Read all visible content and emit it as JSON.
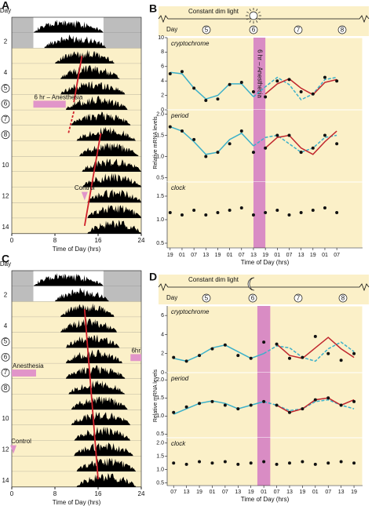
{
  "chart_data": [
    {
      "type": "actogram",
      "label": "A",
      "xlim": [
        0,
        24
      ],
      "xticks": [
        0,
        8,
        16,
        24
      ],
      "xlabel": "Time of Day (hrs)",
      "day_labels": [
        "Day",
        "2",
        null,
        "4",
        "5",
        "6",
        "7",
        "8",
        null,
        "10",
        null,
        "12",
        null,
        "14"
      ],
      "circled": [
        "5",
        "6",
        "7",
        "8"
      ],
      "light_rows": 2,
      "lights": [
        4,
        17
      ],
      "activity": [
        [
          4,
          17
        ],
        [
          6,
          17.5
        ],
        [
          8,
          19
        ],
        [
          9,
          20
        ],
        [
          9,
          21
        ],
        [
          10,
          21.5
        ],
        [
          11,
          22
        ],
        [
          12,
          23
        ],
        [
          12.5,
          23.5
        ],
        [
          13,
          24
        ],
        [
          13,
          24
        ],
        [
          14,
          24
        ],
        [
          14,
          24
        ],
        [
          14,
          24
        ]
      ],
      "line_color": "#d0202a",
      "red_lines": [
        {
          "points": [
            [
              13,
              3
            ],
            [
              11.5,
              6
            ]
          ],
          "dashed": false
        },
        {
          "points": [
            [
              11.5,
              6.6
            ],
            [
              10.5,
              8
            ]
          ],
          "dashed": true
        },
        {
          "points": [
            [
              16.5,
              8
            ],
            [
              13.5,
              14
            ]
          ],
          "dashed": false
        }
      ],
      "annotation_color": "#e195c9",
      "annotations": [
        {
          "text": "6 hr – Anesthesia",
          "row": 6,
          "start": 4,
          "end": 10
        },
        {
          "text": "Control",
          "row": 12,
          "at": 13.5
        }
      ]
    },
    {
      "type": "line",
      "label": "B",
      "icon": "sun",
      "header": {
        "text": "Constant dim light",
        "day": "Day",
        "days": [
          "5",
          "6",
          "7",
          "8"
        ]
      },
      "xlim": [
        -1.5,
        97
      ],
      "x": [
        0,
        6,
        12,
        18,
        24,
        30,
        36,
        42,
        48,
        54,
        60,
        66,
        72,
        78,
        84
      ],
      "xticks": [
        {
          "value": 0,
          "label": "19"
        },
        {
          "value": 6,
          "label": "01"
        },
        {
          "value": 12,
          "label": "07"
        },
        {
          "value": 18,
          "label": "13"
        },
        {
          "value": 24,
          "label": "19"
        },
        {
          "value": 30,
          "label": "01"
        },
        {
          "value": 36,
          "label": "07"
        },
        {
          "value": 42,
          "label": "13"
        },
        {
          "value": 48,
          "label": "19"
        },
        {
          "value": 54,
          "label": "01"
        },
        {
          "value": 60,
          "label": "07"
        },
        {
          "value": 66,
          "label": "13"
        },
        {
          "value": 72,
          "label": "19"
        },
        {
          "value": 78,
          "label": "01"
        },
        {
          "value": 84,
          "label": "07"
        }
      ],
      "xlabel": "Time of Day (hrs)",
      "ylabel": "Relative mRNA levels",
      "shade": [
        42,
        48
      ],
      "shade_color": "#d98cc4",
      "shade_label": "6 hr – Anesthesia",
      "subplots": [
        {
          "title": "cryptochrome",
          "ylim": [
            0,
            10
          ],
          "yticks": [
            0,
            2,
            4,
            6,
            8,
            10
          ],
          "series": [
            {
              "style": "line",
              "color": "#3bb0c9",
              "values": [
                5.2,
                5,
                3,
                1.5,
                2,
                3.6,
                3.6,
                1.8,
                null,
                null,
                null,
                null,
                null,
                null,
                null
              ]
            },
            {
              "style": "dashed",
              "color": "#3bb0c9",
              "values": [
                null,
                null,
                null,
                null,
                null,
                null,
                null,
                1.8,
                3.2,
                4.5,
                3.5,
                1.4,
                2.2,
                4.2,
                4.5
              ]
            },
            {
              "style": "line",
              "color": "#c0262d",
              "values": [
                null,
                null,
                null,
                null,
                null,
                null,
                null,
                null,
                2.2,
                3.6,
                4.3,
                3,
                2.1,
                3.8,
                4.2
              ]
            },
            {
              "style": "dots",
              "color": "#111111",
              "values": [
                5,
                5.3,
                3,
                1.3,
                1.5,
                3.5,
                3.8,
                2.5,
                1.8,
                4,
                4.2,
                2.5,
                2.2,
                4.5,
                4
              ]
            }
          ]
        },
        {
          "title": "period",
          "ylim": [
            0.4,
            2.1
          ],
          "yticks": [
            0.5,
            {
              "value": 1,
              "label": "1.0"
            },
            1.5,
            {
              "value": 2,
              "label": "2.0"
            }
          ],
          "series": [
            {
              "style": "line",
              "color": "#3bb0c9",
              "values": [
                1.7,
                1.6,
                1.35,
                1.05,
                1.1,
                1.4,
                1.55,
                1.25,
                null,
                null,
                null,
                null,
                null,
                null,
                null
              ]
            },
            {
              "style": "dashed",
              "color": "#3bb0c9",
              "values": [
                null,
                null,
                null,
                null,
                null,
                null,
                null,
                1.25,
                1.45,
                1.5,
                1.3,
                1.1,
                1.2,
                1.45,
                1.5
              ]
            },
            {
              "style": "line",
              "color": "#c0262d",
              "values": [
                null,
                null,
                null,
                null,
                null,
                null,
                null,
                null,
                1.2,
                1.45,
                1.5,
                1.2,
                1.05,
                1.35,
                1.6
              ]
            },
            {
              "style": "dots",
              "color": "#111111",
              "values": [
                1.7,
                1.6,
                1.4,
                1,
                1.1,
                1.3,
                1.6,
                1.1,
                1.2,
                1.5,
                1.5,
                1.1,
                1.2,
                1.5,
                1.3
              ]
            }
          ]
        },
        {
          "title": "clock",
          "ylim": [
            0.4,
            1.8
          ],
          "yticks": [
            0.5,
            {
              "value": 1,
              "label": "1.0"
            },
            1.5
          ],
          "series": [
            {
              "style": "dots",
              "color": "#111111",
              "values": [
                1.15,
                1.1,
                1.2,
                1.1,
                1.15,
                1.2,
                1.25,
                1.1,
                1.15,
                1.2,
                1.1,
                1.15,
                1.2,
                1.25,
                1.15
              ]
            }
          ]
        }
      ]
    },
    {
      "type": "actogram",
      "label": "C",
      "xlim": [
        0,
        24
      ],
      "xticks": [
        0,
        8,
        16,
        24
      ],
      "xlabel": "Time of Day (hrs)",
      "day_labels": [
        "Day",
        "2",
        null,
        "4",
        "5",
        "6",
        "7",
        "8",
        null,
        "10",
        null,
        "12",
        null,
        "14"
      ],
      "circled": [
        "5",
        "6",
        "7",
        "8"
      ],
      "light_rows": 2,
      "lights": [
        4,
        17
      ],
      "activity": [
        [
          4,
          17
        ],
        [
          8,
          18
        ],
        [
          9,
          19
        ],
        [
          9,
          19.5
        ],
        [
          10,
          20
        ],
        [
          10,
          20.5
        ],
        [
          10,
          21
        ],
        [
          10.5,
          21
        ],
        [
          11,
          21.5
        ],
        [
          11,
          22
        ],
        [
          11.5,
          22
        ],
        [
          11.5,
          22.5
        ],
        [
          12,
          23
        ],
        [
          12,
          23
        ]
      ],
      "line_color": "#d0202a",
      "red_lines": [
        {
          "points": [
            [
              13.5,
              3
            ],
            [
              16,
              14
            ]
          ],
          "dashed": false
        }
      ],
      "annotation_color": "#e195c9",
      "annotations": [
        {
          "text": "6hr",
          "row": 6,
          "start": 22,
          "end": 24
        },
        {
          "text": "Anesthesia",
          "row": 7,
          "start": 0,
          "end": 4.5
        },
        {
          "text": "Control",
          "row": 12,
          "at": 0.3
        }
      ]
    },
    {
      "type": "line",
      "label": "D",
      "icon": "moon",
      "header": {
        "text": "Constant dim light",
        "day": "Day",
        "days": [
          "5",
          "6",
          "7",
          "8"
        ]
      },
      "xlim": [
        -3,
        88
      ],
      "x": [
        0,
        6,
        12,
        18,
        24,
        30,
        36,
        42,
        48,
        54,
        60,
        66,
        72,
        78,
        84
      ],
      "xticks": [
        {
          "value": 0,
          "label": "07"
        },
        {
          "value": 6,
          "label": "13"
        },
        {
          "value": 12,
          "label": "19"
        },
        {
          "value": 18,
          "label": "01"
        },
        {
          "value": 24,
          "label": "07"
        },
        {
          "value": 30,
          "label": "13"
        },
        {
          "value": 36,
          "label": "19"
        },
        {
          "value": 42,
          "label": "01"
        },
        {
          "value": 48,
          "label": "07"
        },
        {
          "value": 54,
          "label": "13"
        },
        {
          "value": 60,
          "label": "19"
        },
        {
          "value": 66,
          "label": "01"
        },
        {
          "value": 72,
          "label": "07"
        },
        {
          "value": 78,
          "label": "13"
        },
        {
          "value": 84,
          "label": "19"
        }
      ],
      "xlabel": "Time of Day (hrs)",
      "ylabel": "Relative mRNA levels",
      "shade": [
        39,
        45
      ],
      "shade_color": "#d98cc4",
      "subplots": [
        {
          "title": "cryptochrome",
          "ylim": [
            0,
            7
          ],
          "yticks": [
            0,
            2,
            4,
            6
          ],
          "series": [
            {
              "style": "line",
              "color": "#3bb0c9",
              "values": [
                1.5,
                1.2,
                1.8,
                2.6,
                2.9,
                2.2,
                1.5,
                2,
                null,
                null,
                null,
                null,
                null,
                null,
                null
              ]
            },
            {
              "style": "dashed",
              "color": "#3bb0c9",
              "values": [
                null,
                null,
                null,
                null,
                null,
                null,
                null,
                2,
                2.8,
                2.6,
                1.6,
                1.2,
                2.5,
                3.2,
                2.2
              ]
            },
            {
              "style": "line",
              "color": "#c0262d",
              "values": [
                null,
                null,
                null,
                null,
                null,
                null,
                null,
                null,
                3,
                1.8,
                1.5,
                2.6,
                3.7,
                2.5,
                1.6
              ]
            },
            {
              "style": "dots",
              "color": "#111111",
              "values": [
                1.6,
                1.2,
                1.8,
                2.5,
                2.9,
                1.8,
                1.5,
                3.2,
                3,
                1.5,
                1.6,
                3.8,
                2,
                1.3,
                2
              ]
            }
          ]
        },
        {
          "title": "period",
          "ylim": [
            0.4,
            2.2
          ],
          "yticks": [
            0.5,
            {
              "value": 1,
              "label": "1.0"
            },
            1.5,
            {
              "value": 2,
              "label": "2.0"
            }
          ],
          "series": [
            {
              "style": "line",
              "color": "#3bb0c9",
              "values": [
                1.05,
                1.2,
                1.35,
                1.42,
                1.35,
                1.2,
                1.3,
                1.4,
                null,
                null,
                null,
                null,
                null,
                null,
                null
              ]
            },
            {
              "style": "dashed",
              "color": "#3bb0c9",
              "values": [
                null,
                null,
                null,
                null,
                null,
                null,
                null,
                1.4,
                1.3,
                1.15,
                1.2,
                1.4,
                1.45,
                1.3,
                1.2
              ]
            },
            {
              "style": "line",
              "color": "#c0262d",
              "values": [
                null,
                null,
                null,
                null,
                null,
                null,
                null,
                null,
                1.3,
                1.1,
                1.2,
                1.45,
                1.5,
                1.3,
                1.45
              ]
            },
            {
              "style": "dots",
              "color": "#111111",
              "values": [
                1.1,
                1.25,
                1.35,
                1.4,
                1.3,
                1.2,
                1.3,
                1.4,
                1.3,
                1.1,
                1.2,
                1.45,
                1.5,
                1.3,
                1.4
              ]
            }
          ]
        },
        {
          "title": "clock",
          "ylim": [
            0.4,
            2.2
          ],
          "yticks": [
            0.5,
            {
              "value": 1,
              "label": "1.0"
            },
            1.5,
            {
              "value": 2,
              "label": "2.0"
            }
          ],
          "series": [
            {
              "style": "dots",
              "color": "#111111",
              "values": [
                1.25,
                1.2,
                1.3,
                1.25,
                1.3,
                1.2,
                1.25,
                1.3,
                1.2,
                1.25,
                1.3,
                1.2,
                1.25,
                1.3,
                1.25
              ]
            }
          ]
        }
      ]
    }
  ]
}
